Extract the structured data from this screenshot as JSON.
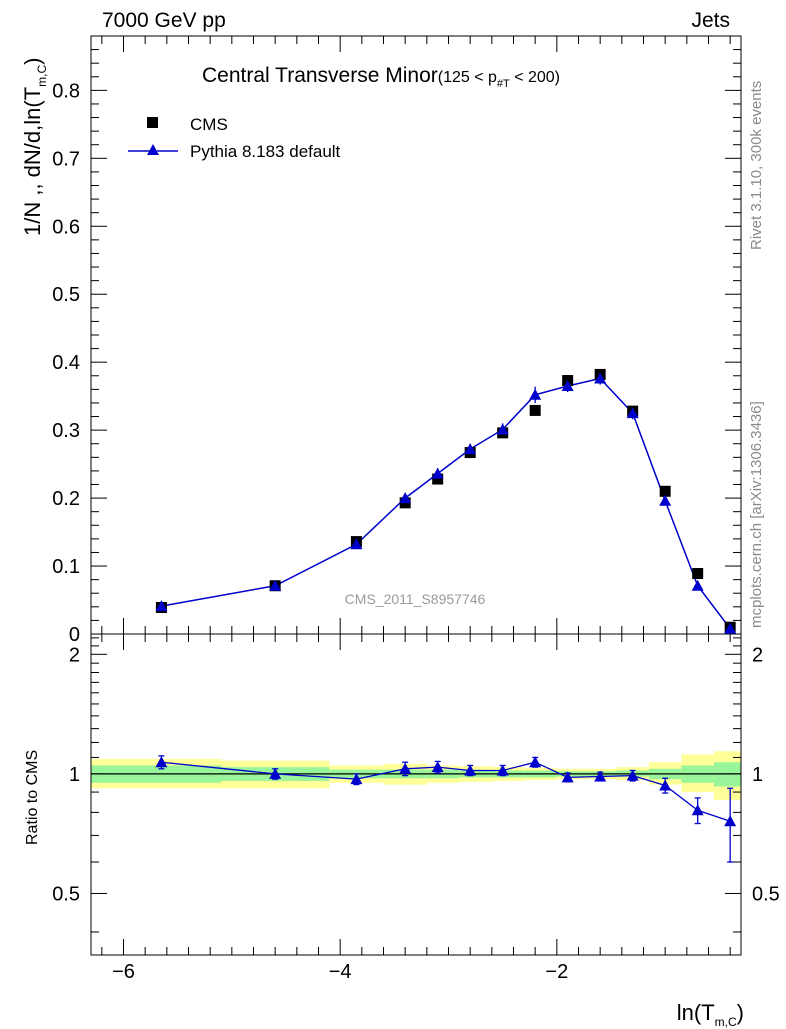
{
  "header": {
    "left": "7000 GeV pp",
    "right": "Jets"
  },
  "side": {
    "rivet": "Rivet 3.1.10,  300k events",
    "mcplots": "mcplots.cern.ch [arXiv:1306.3436]"
  },
  "chart_data": {
    "type": "line",
    "title": "Central Transverse Minor",
    "title_cut_pre": "(125 < p",
    "title_cut_sub": "#T",
    "title_cut_post": "  < 200)",
    "watermark": "CMS_2011_S8957746",
    "xlabel_main": "ln(T",
    "xlabel_sub": "m,C",
    "xlabel_close": ")",
    "ylabel_main": "1/N ,, dN/d,ln(T",
    "ylabel_sub": "m,C",
    "ylabel_close": ")",
    "ratio_ylabel": "Ratio to CMS",
    "xlim": [
      -6.3,
      -0.3
    ],
    "ylim": [
      0,
      0.88
    ],
    "ratio_ylim": [
      0.35,
      2.25
    ],
    "x_ticks": [
      "-6",
      "-4",
      "-2"
    ],
    "y_ticks": [
      "0",
      "0.1",
      "0.2",
      "0.3",
      "0.4",
      "0.5",
      "0.6",
      "0.7",
      "0.8"
    ],
    "ratio_ticks": [
      "0.5",
      "1",
      "2"
    ],
    "legend": [
      {
        "name": "CMS",
        "color": "#000000",
        "marker": "square"
      },
      {
        "name": "Pythia 8.183 default",
        "color": "#0000cc",
        "marker": "triangle"
      }
    ],
    "x": [
      -5.65,
      -4.6,
      -3.85,
      -3.4,
      -3.1,
      -2.8,
      -2.5,
      -2.2,
      -1.9,
      -1.6,
      -1.3,
      -1.0,
      -0.7,
      -0.4
    ],
    "series": [
      {
        "name": "CMS",
        "values": [
          0.039,
          0.071,
          0.136,
          0.193,
          0.228,
          0.267,
          0.296,
          0.329,
          0.373,
          0.382,
          0.328,
          0.21,
          0.089,
          0.01
        ]
      },
      {
        "name": "Pythia 8.183 default",
        "values": [
          0.041,
          0.071,
          0.132,
          0.2,
          0.236,
          0.272,
          0.301,
          0.352,
          0.365,
          0.376,
          0.325,
          0.196,
          0.071,
          0.008
        ],
        "errors": [
          0.003,
          0.002,
          0.004,
          0.007,
          0.008,
          0.008,
          0.009,
          0.012,
          0.009,
          0.009,
          0.009,
          0.006,
          0.004,
          0.002
        ]
      }
    ],
    "ratio": {
      "values": [
        1.07,
        1.0,
        0.97,
        1.03,
        1.04,
        1.02,
        1.02,
        1.07,
        0.98,
        0.985,
        0.99,
        0.935,
        0.81,
        0.76
      ],
      "errors": [
        0.04,
        0.03,
        0.03,
        0.04,
        0.035,
        0.03,
        0.03,
        0.03,
        0.025,
        0.025,
        0.03,
        0.04,
        0.06,
        0.16
      ],
      "band_edges": [
        -6.3,
        -5.1,
        -4.1,
        -3.6,
        -3.2,
        -2.9,
        -2.6,
        -2.3,
        -2.0,
        -1.7,
        -1.45,
        -1.15,
        -0.85,
        -0.55,
        -0.3
      ],
      "green_lo": [
        0.95,
        0.96,
        0.975,
        0.975,
        0.975,
        0.98,
        0.98,
        0.98,
        0.985,
        0.985,
        0.985,
        0.97,
        0.95,
        0.93
      ],
      "green_hi": [
        1.05,
        1.04,
        1.025,
        1.025,
        1.025,
        1.02,
        1.02,
        1.02,
        1.015,
        1.015,
        1.02,
        1.03,
        1.05,
        1.07
      ],
      "yellow_lo": [
        0.92,
        0.92,
        0.95,
        0.94,
        0.95,
        0.955,
        0.96,
        0.965,
        0.97,
        0.97,
        0.965,
        0.94,
        0.9,
        0.86
      ],
      "yellow_hi": [
        1.09,
        1.08,
        1.05,
        1.06,
        1.05,
        1.045,
        1.04,
        1.035,
        1.03,
        1.03,
        1.04,
        1.07,
        1.12,
        1.14
      ]
    }
  }
}
